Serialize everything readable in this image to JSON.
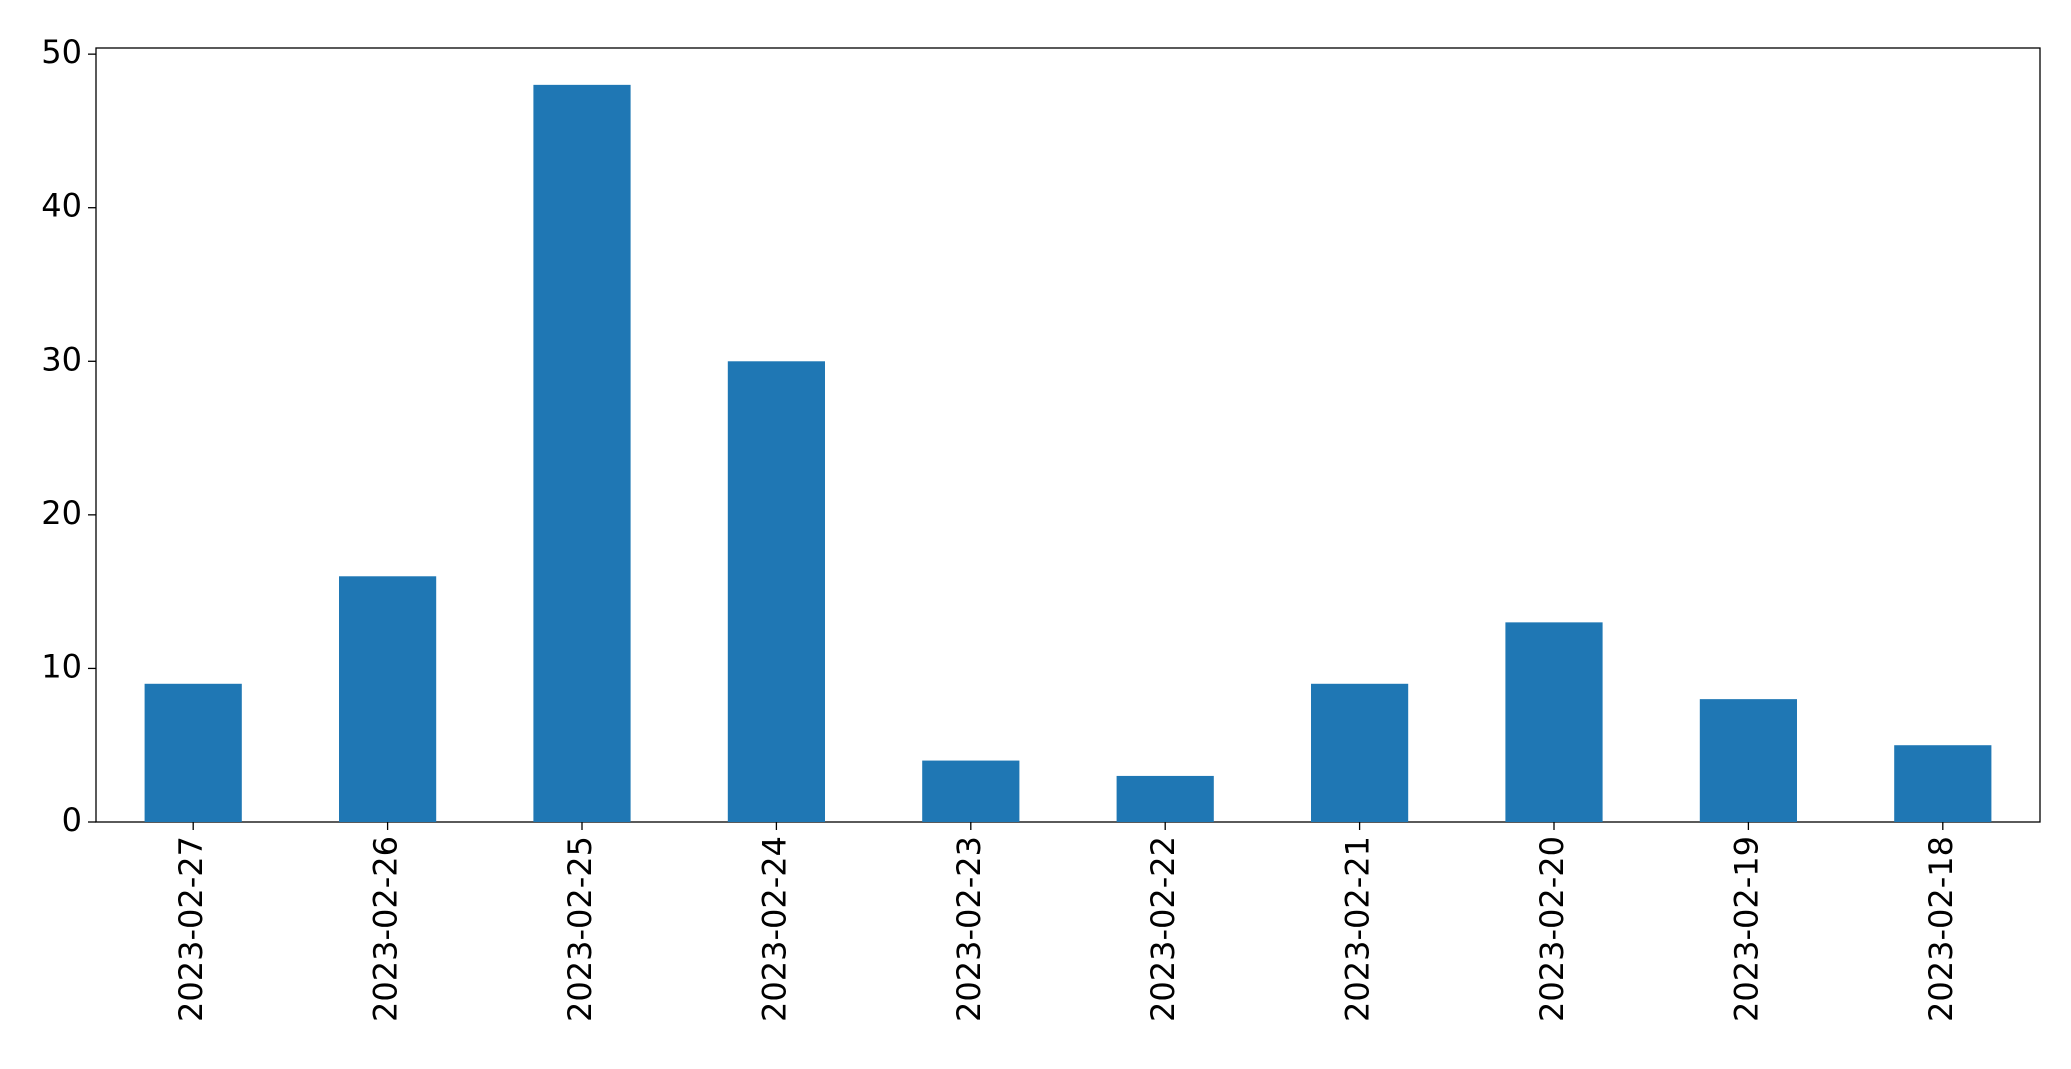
{
  "chart_data": {
    "type": "bar",
    "categories": [
      "2023-02-27",
      "2023-02-26",
      "2023-02-25",
      "2023-02-24",
      "2023-02-23",
      "2023-02-22",
      "2023-02-21",
      "2023-02-20",
      "2023-02-19",
      "2023-02-18"
    ],
    "values": [
      9,
      16,
      48,
      30,
      4,
      3,
      9,
      13,
      8,
      5
    ],
    "color": "#1f77b4",
    "ylim": [
      0,
      50.4
    ],
    "yticks": [
      0,
      10,
      20,
      30,
      40,
      50
    ],
    "grid": false
  }
}
